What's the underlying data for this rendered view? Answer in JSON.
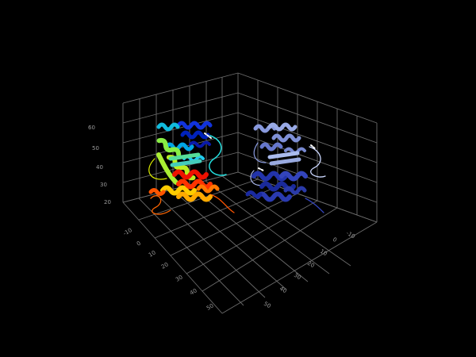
{
  "viewer": {
    "background": "#000000",
    "grid_color": "#6b6b6b",
    "tick_color": "#9a9a9a"
  },
  "axes": {
    "z_ticks": [
      "20",
      "30",
      "40",
      "50",
      "60"
    ],
    "x_ticks": [
      "-10",
      "0",
      "10",
      "20",
      "30",
      "40",
      "50"
    ],
    "y_ticks": [
      "-10",
      "0",
      "10",
      "20",
      "30",
      "40",
      "50"
    ]
  },
  "structures": [
    {
      "name": "rainbow-colored-protein",
      "coloring": "rainbow",
      "colors": [
        "#0000cc",
        "#00aaee",
        "#22dddd",
        "#99ee44",
        "#eeee00",
        "#ff8800",
        "#ee0000"
      ]
    },
    {
      "name": "blue-colored-protein",
      "coloring": "chain",
      "colors": [
        "#8899dd",
        "#5566cc",
        "#2233aa",
        "#b0c0f0"
      ]
    }
  ]
}
